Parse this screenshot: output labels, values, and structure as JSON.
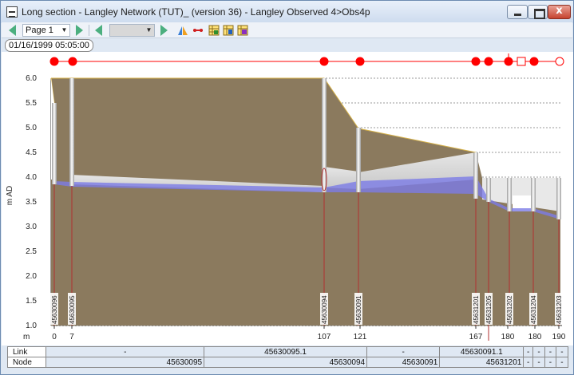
{
  "window": {
    "title": "Long section - Langley Network (TUT)_ (version 36) - Langley Observed 4>Obs4p",
    "close_glyph": "x"
  },
  "toolbar": {
    "page_label": "Page 1",
    "second_combo_value": ""
  },
  "timestamp": "01/16/1999 05:05:00",
  "chart_data": {
    "type": "long-section",
    "ylabel": "m AD",
    "xunit_label": "m",
    "ylim": [
      1.0,
      6.0
    ],
    "yticks": [
      "1.0",
      "1.5",
      "2.0",
      "2.5",
      "3.0",
      "3.5",
      "4.0",
      "4.5",
      "5.0",
      "5.5",
      "6.0"
    ],
    "xticks": [
      "0",
      "7",
      "107",
      "121",
      "167",
      "180",
      "180",
      "190"
    ],
    "node_ids": [
      "45630096",
      "45630095",
      "45630094",
      "45630091",
      "45631201",
      "45631205",
      "45631202",
      "45631204",
      "45631203"
    ],
    "colors": {
      "ground": "#8b7a5e",
      "water": "#7c7ce6",
      "node_marker": "#ff0000",
      "ground_line": "#d6b24a"
    }
  },
  "table": {
    "rows": [
      {
        "header": "Link",
        "cells": [
          "-",
          "45630095.1",
          "-",
          "45630091.1",
          "-",
          "-",
          "-",
          "-"
        ]
      },
      {
        "header": "Node",
        "cells": [
          "45630095",
          "45630094",
          "45630091",
          "45631201",
          "-",
          "-",
          "-",
          "-"
        ]
      }
    ]
  }
}
